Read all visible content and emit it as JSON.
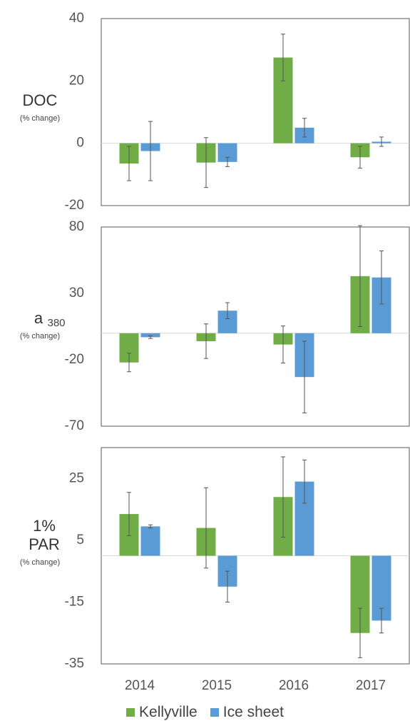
{
  "chart_data": [
    {
      "type": "bar",
      "ylabel": "DOC",
      "ylabel_note": "(% change)",
      "categories": [
        "2014",
        "2015",
        "2016",
        "2017"
      ],
      "yticks": [
        "40",
        "20",
        "0",
        "-20"
      ],
      "ylim": [
        -20,
        40
      ],
      "series": [
        {
          "name": "Kellyville",
          "color": "#70AD47",
          "values": [
            -6.5,
            -6.2,
            27.5,
            -4.5
          ],
          "err": [
            5.5,
            8.0,
            7.5,
            3.5
          ]
        },
        {
          "name": "Ice sheet",
          "color": "#5B9BD5",
          "values": [
            -2.5,
            -6.0,
            5.0,
            0.5
          ],
          "err": [
            9.5,
            1.5,
            3.0,
            1.5
          ]
        }
      ]
    },
    {
      "type": "bar",
      "ylabel": "a",
      "ylabel_sub": "380",
      "ylabel_note": "(% change)",
      "categories": [
        "2014",
        "2015",
        "2016",
        "2017"
      ],
      "yticks": [
        "80",
        "30",
        "-20",
        "-70"
      ],
      "ylim": [
        -70,
        80
      ],
      "series": [
        {
          "name": "Kellyville",
          "color": "#70AD47",
          "values": [
            -22,
            -6,
            -8.5,
            43
          ],
          "err": [
            7,
            13,
            14,
            38
          ]
        },
        {
          "name": "Ice sheet",
          "color": "#5B9BD5",
          "values": [
            -3,
            17,
            -33,
            42
          ],
          "err": [
            1,
            6,
            27,
            20
          ]
        }
      ]
    },
    {
      "type": "bar",
      "ylabel": "1%",
      "ylabel_line2": "PAR",
      "ylabel_note": "(% change)",
      "categories": [
        "2014",
        "2015",
        "2016",
        "2017"
      ],
      "yticks": [
        "25",
        "5",
        "-15",
        "-35"
      ],
      "ylim": [
        -35,
        35
      ],
      "series": [
        {
          "name": "Kellyville",
          "color": "#70AD47",
          "values": [
            13.5,
            9,
            19,
            -25
          ],
          "err": [
            7,
            13,
            13,
            8
          ]
        },
        {
          "name": "Ice sheet",
          "color": "#5B9BD5",
          "values": [
            9.5,
            -10,
            24,
            -21
          ],
          "err": [
            0.5,
            5,
            7,
            4
          ]
        }
      ]
    }
  ],
  "legend": {
    "items": [
      {
        "label": "Kellyville",
        "color": "#70AD47"
      },
      {
        "label": "Ice sheet",
        "color": "#5B9BD5"
      }
    ]
  }
}
